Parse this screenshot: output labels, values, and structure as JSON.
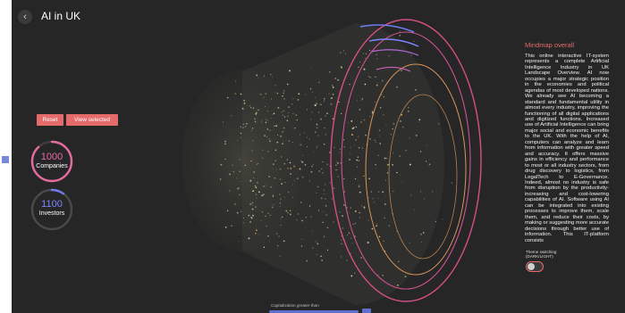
{
  "header": {
    "title": "AI in UK",
    "back_icon": "chevron-left-icon"
  },
  "controls": {
    "reset_label": "Reset",
    "view_selected_label": "View selected"
  },
  "stats": {
    "companies": {
      "value": "1000",
      "label": "Companies",
      "fraction": 0.88,
      "color": "#e76aa0"
    },
    "investors": {
      "value": "1100",
      "label": "Investors",
      "fraction": 0.1,
      "color": "#6f7cf0"
    }
  },
  "sidebar": {
    "title": "Mindmap overall",
    "text": "This online interactive IT-system represents a complete Artificial Intelligence Industry in UK Landscape Overview. AI now occupies a major strategic position in the economies and political agendas of most developed nations. We already see AI becoming a standard and fundamental utility in almost every industry, improving the functioning of all digital applications and digitized functions. Increased use of Artificial Intelligence can bring major social and economic benefits to the UK. With the help of AI, computers can analyze and learn from information with greater speed and accuracy. It offers massive gains in efficiency and performance to most or all industry sectors, from drug discovery to logistics, from LegalTech to E-Governance. Indeed, almost no industry is safe from disruption by the productivity-increasing and cost-lowering capabilities of AI. Software using AI can be integrated into existing processes to improve them, scale them, and reduce their costs, by making or suggesting more accurate decisions through better use of information. This IT-platform consists",
    "theme_label": "Theme switching (DARK/LIGHT)"
  },
  "slider": {
    "label": "Capitalization greater than"
  },
  "colors": {
    "accent": "#e56b6b",
    "pink": "#e5588c",
    "orange": "#e6a060",
    "blue": "#6f7cf0"
  }
}
